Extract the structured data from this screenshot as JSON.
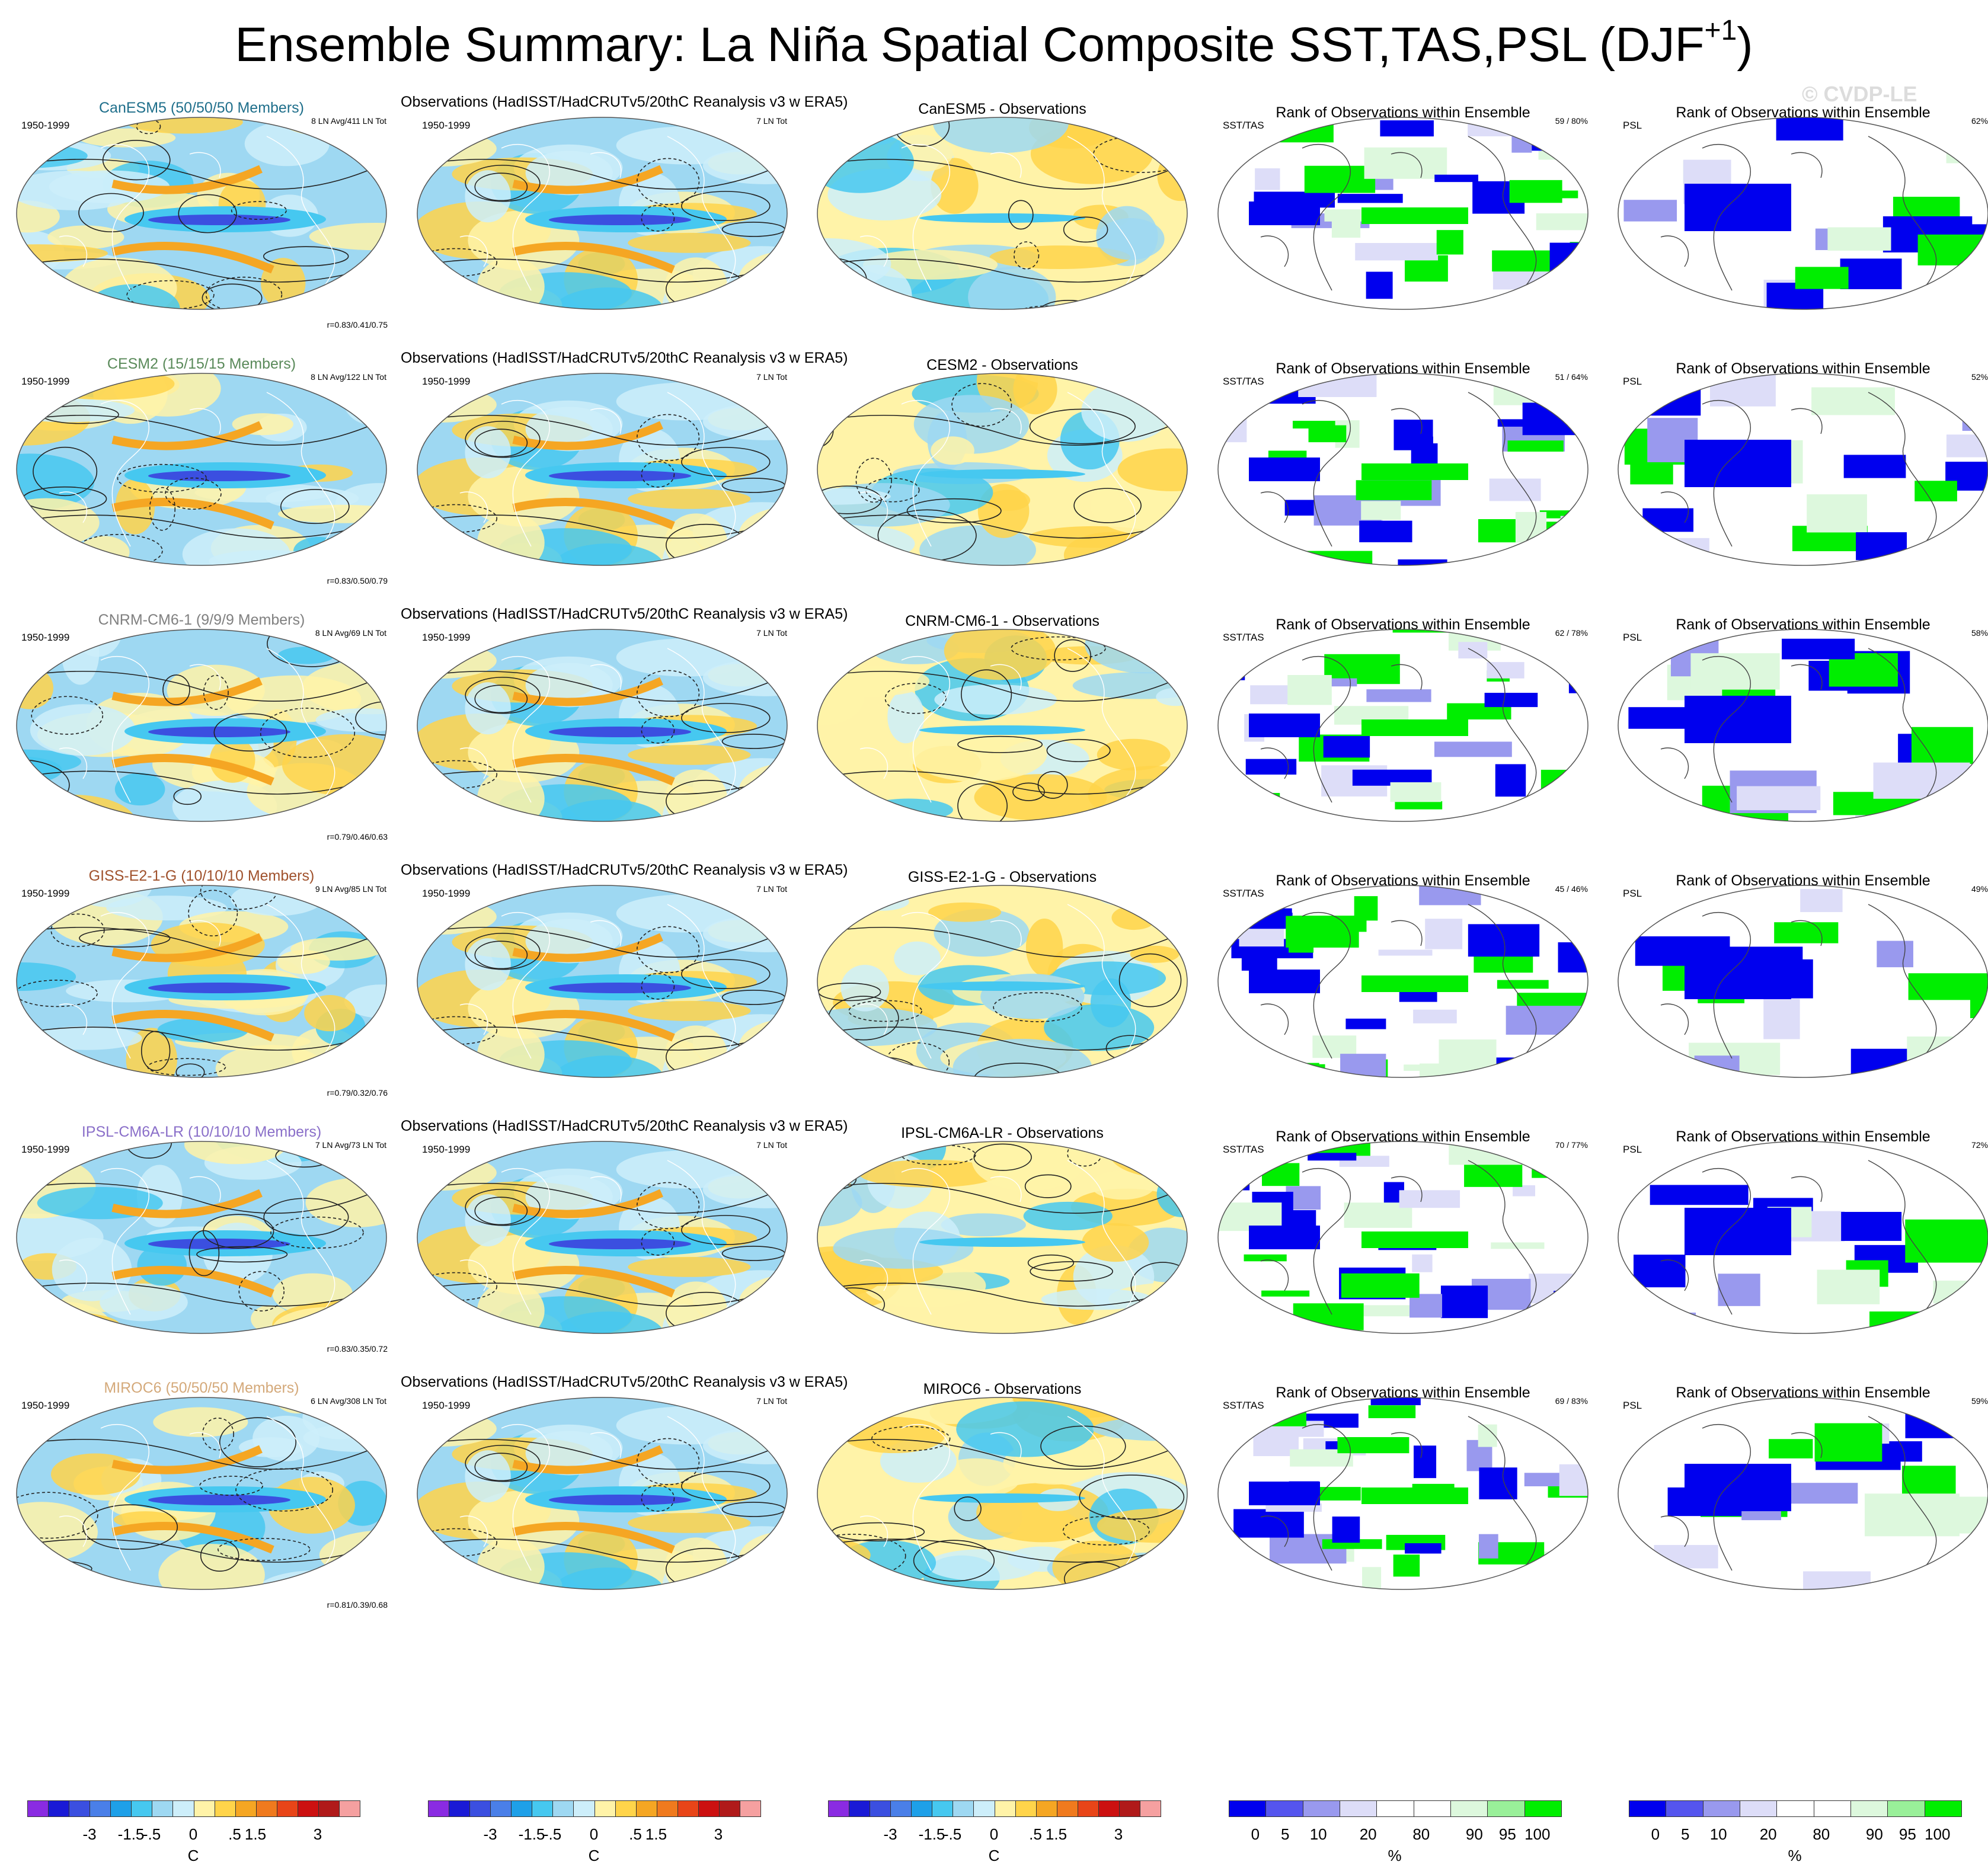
{
  "title": {
    "text": "Ensemble Summary: La Niña Spatial Composite SST,TAS,PSL (DJF",
    "superscript": "+1",
    "close": ")"
  },
  "watermark": "© CVDP-LE",
  "rows": [
    {
      "model": "CanESM5",
      "model_title": "CanESM5 (50/50/50 Members)",
      "model_color": "#1f6f8b",
      "model_sub_left": "1950-1999",
      "model_sub_right": "8 LN Avg/411 LN Tot",
      "model_stats": "r=0.83/0.41/0.75",
      "obs_title": "Observations (HadISST/HadCRUTv5/20thC Reanalysis v3 w ERA5)",
      "obs_sub_left": "1950-1999",
      "obs_sub_right": "7 LN Tot",
      "diff_title": "CanESM5 - Observations",
      "rank_title": "Rank of Observations within Ensemble",
      "rank_sst_label": "SST/TAS",
      "rank_sst_pct": "59 /  80%",
      "rank_psl_label": "PSL",
      "rank_psl_pct": "62%"
    },
    {
      "model": "CESM2",
      "model_title": "CESM2 (15/15/15 Members)",
      "model_color": "#5a8a5a",
      "model_sub_left": "1950-1999",
      "model_sub_right": "8 LN Avg/122 LN Tot",
      "model_stats": "r=0.83/0.50/0.79",
      "obs_title": "Observations (HadISST/HadCRUTv5/20thC Reanalysis v3 w ERA5)",
      "obs_sub_left": "1950-1999",
      "obs_sub_right": "7 LN Tot",
      "diff_title": "CESM2 - Observations",
      "rank_title": "Rank of Observations within Ensemble",
      "rank_sst_label": "SST/TAS",
      "rank_sst_pct": "51 /  64%",
      "rank_psl_label": "PSL",
      "rank_psl_pct": "52%"
    },
    {
      "model": "CNRM-CM6-1",
      "model_title": "CNRM-CM6-1 (9/9/9 Members)",
      "model_color": "#808080",
      "model_sub_left": "1950-1999",
      "model_sub_right": "8 LN Avg/69 LN Tot",
      "model_stats": "r=0.79/0.46/0.63",
      "obs_title": "Observations (HadISST/HadCRUTv5/20thC Reanalysis v3 w ERA5)",
      "obs_sub_left": "1950-1999",
      "obs_sub_right": "7 LN Tot",
      "diff_title": "CNRM-CM6-1 - Observations",
      "rank_title": "Rank of Observations within Ensemble",
      "rank_sst_label": "SST/TAS",
      "rank_sst_pct": "62 /  78%",
      "rank_psl_label": "PSL",
      "rank_psl_pct": "58%"
    },
    {
      "model": "GISS-E2-1-G",
      "model_title": "GISS-E2-1-G (10/10/10 Members)",
      "model_color": "#a0522d",
      "model_sub_left": "1950-1999",
      "model_sub_right": "9 LN Avg/85 LN Tot",
      "model_stats": "r=0.79/0.32/0.76",
      "obs_title": "Observations (HadISST/HadCRUTv5/20thC Reanalysis v3 w ERA5)",
      "obs_sub_left": "1950-1999",
      "obs_sub_right": "7 LN Tot",
      "diff_title": "GISS-E2-1-G - Observations",
      "rank_title": "Rank of Observations within Ensemble",
      "rank_sst_label": "SST/TAS",
      "rank_sst_pct": "45 /  46%",
      "rank_psl_label": "PSL",
      "rank_psl_pct": "49%"
    },
    {
      "model": "IPSL-CM6A-LR",
      "model_title": "IPSL-CM6A-LR (10/10/10 Members)",
      "model_color": "#8a6fc9",
      "model_sub_left": "1950-1999",
      "model_sub_right": "7 LN Avg/73 LN Tot",
      "model_stats": "r=0.83/0.35/0.72",
      "obs_title": "Observations (HadISST/HadCRUTv5/20thC Reanalysis v3 w ERA5)",
      "obs_sub_left": "1950-1999",
      "obs_sub_right": "7 LN Tot",
      "diff_title": "IPSL-CM6A-LR - Observations",
      "rank_title": "Rank of Observations within Ensemble",
      "rank_sst_label": "SST/TAS",
      "rank_sst_pct": "70 /  77%",
      "rank_psl_label": "PSL",
      "rank_psl_pct": "72%"
    },
    {
      "model": "MIROC6",
      "model_title": "MIROC6 (50/50/50 Members)",
      "model_color": "#d4a97a",
      "model_sub_left": "1950-1999",
      "model_sub_right": "6 LN Avg/308 LN Tot",
      "model_stats": "r=0.81/0.39/0.68",
      "obs_title": "Observations (HadISST/HadCRUTv5/20thC Reanalysis v3 w ERA5)",
      "obs_sub_left": "1950-1999",
      "obs_sub_right": "7 LN Tot",
      "diff_title": "MIROC6 - Observations",
      "rank_title": "Rank of Observations within Ensemble",
      "rank_sst_label": "SST/TAS",
      "rank_sst_pct": "69 /  83%",
      "rank_psl_label": "PSL",
      "rank_psl_pct": "59%"
    }
  ],
  "colorbars": {
    "temperature": {
      "colors": [
        "#8a2be2",
        "#1a1ad6",
        "#3b4fe0",
        "#4a7fe8",
        "#1ea0e8",
        "#46c8f0",
        "#9ed8f2",
        "#cdeefa",
        "#fff3a8",
        "#ffd44a",
        "#f5a623",
        "#f07a1e",
        "#e84518",
        "#cc1111",
        "#b01a1a",
        "#f5a0a0"
      ],
      "ticks": [
        "-3",
        "-1.5",
        "-.5",
        "0",
        ".5",
        "1.5",
        "3"
      ],
      "unit": "C"
    },
    "rank": {
      "colors": [
        "#0000ee",
        "#5555ee",
        "#9999ee",
        "#ddddf8",
        "#ffffff",
        "#ffffff",
        "#ddf8dd",
        "#99f099",
        "#00ee00"
      ],
      "ticks": [
        "0",
        "5",
        "10",
        "20",
        "80",
        "90",
        "95",
        "100"
      ],
      "unit": "%"
    }
  }
}
